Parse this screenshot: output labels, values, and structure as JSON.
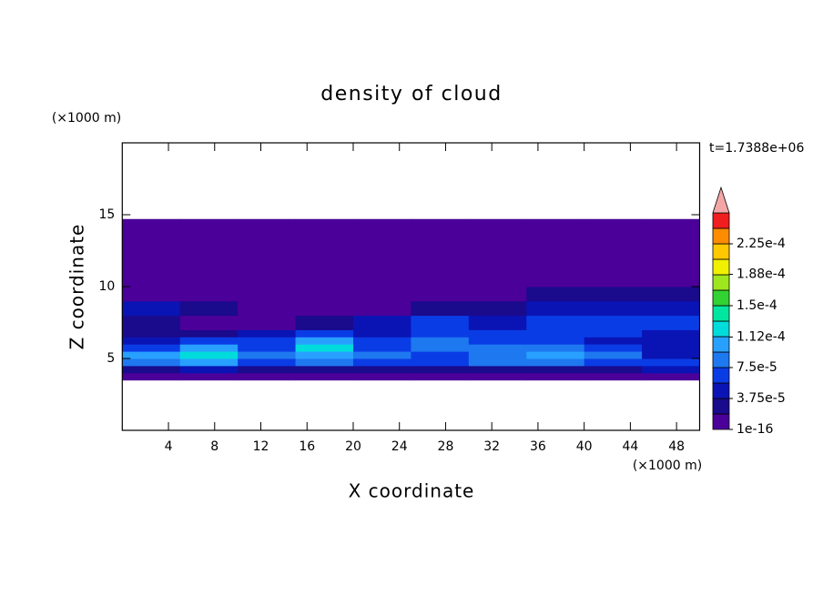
{
  "chart_data": {
    "type": "contour",
    "title": "density of cloud",
    "xlabel": "X coordinate",
    "ylabel": "Z coordinate",
    "x_unit": "(×1000 m)",
    "y_unit": "(×1000 m)",
    "annotation": "t=1.7388e+06",
    "xlim": [
      0,
      50
    ],
    "ylim": [
      0,
      20
    ],
    "xticks": [
      4,
      8,
      12,
      16,
      20,
      24,
      28,
      32,
      36,
      40,
      44,
      48
    ],
    "yticks": [
      5,
      10,
      15
    ],
    "x_edges": [
      0,
      5,
      10,
      15,
      20,
      25,
      30,
      35,
      40,
      45,
      50
    ],
    "z_edges": [
      3.5,
      4,
      4.5,
      5,
      5.5,
      6,
      6.5,
      7,
      8,
      9,
      10,
      14.7
    ],
    "z": [
      [
        1e-05,
        1e-05,
        1e-05,
        1e-05,
        1e-05,
        1e-05,
        1e-05,
        1e-05,
        1e-05,
        1e-05
      ],
      [
        3e-05,
        4e-05,
        3e-05,
        3e-05,
        2e-05,
        3e-05,
        3e-05,
        3e-05,
        3e-05,
        4e-05
      ],
      [
        9e-05,
        0.0001,
        7e-05,
        8e-05,
        6e-05,
        6e-05,
        8e-05,
        9e-05,
        7e-05,
        6e-05
      ],
      [
        0.00011,
        0.00012,
        8e-05,
        0.00011,
        8e-05,
        7e-05,
        9e-05,
        0.00011,
        8e-05,
        5e-05
      ],
      [
        7e-05,
        0.00011,
        7e-05,
        0.00012,
        7e-05,
        8e-05,
        8e-05,
        9e-05,
        6e-05,
        4e-05
      ],
      [
        4e-05,
        6e-05,
        6e-05,
        0.00011,
        6e-05,
        8e-05,
        7e-05,
        7e-05,
        5e-05,
        4e-05
      ],
      [
        3e-05,
        3e-05,
        4e-05,
        7e-05,
        5e-05,
        7e-05,
        6e-05,
        7e-05,
        6e-05,
        5e-05
      ],
      [
        2e-05,
        1e-05,
        1e-05,
        3e-05,
        4e-05,
        6e-05,
        5e-05,
        6e-05,
        6e-05,
        6e-05
      ],
      [
        4e-05,
        3e-05,
        1e-05,
        1e-05,
        1e-05,
        2e-05,
        3e-05,
        4e-05,
        5e-05,
        5e-05
      ],
      [
        1e-05,
        1e-05,
        1e-05,
        1e-05,
        1e-05,
        1e-05,
        1e-05,
        2e-05,
        2e-05,
        2e-05
      ],
      [
        1e-05,
        1e-05,
        1e-05,
        1e-05,
        1e-05,
        1e-05,
        1e-05,
        1e-05,
        1e-05,
        1e-05
      ]
    ],
    "clim": [
      1e-16,
      0.0002625
    ],
    "colors": [
      "#4b0099",
      "#1a0a8c",
      "#0a14b4",
      "#0a3ce6",
      "#1e78f0",
      "#28a0ff",
      "#00dcdc",
      "#00e6a0",
      "#32d232",
      "#9ee61e",
      "#f0f000",
      "#ffc800",
      "#ff8c00",
      "#f01e1e"
    ],
    "over_color": "#f4a6a6",
    "cticks": [
      1e-16,
      {
        "value": 3.75e-05,
        "label": "3.75e-5"
      },
      {
        "value": 7.5e-05,
        "label": "7.5e-5"
      },
      {
        "value": 0.000112,
        "label": "1.12e-4"
      },
      {
        "value": 0.00015,
        "label": "1.5e-4"
      },
      {
        "value": 0.000188,
        "label": "1.88e-4"
      },
      {
        "value": 0.000225,
        "label": "2.25e-4"
      }
    ]
  }
}
